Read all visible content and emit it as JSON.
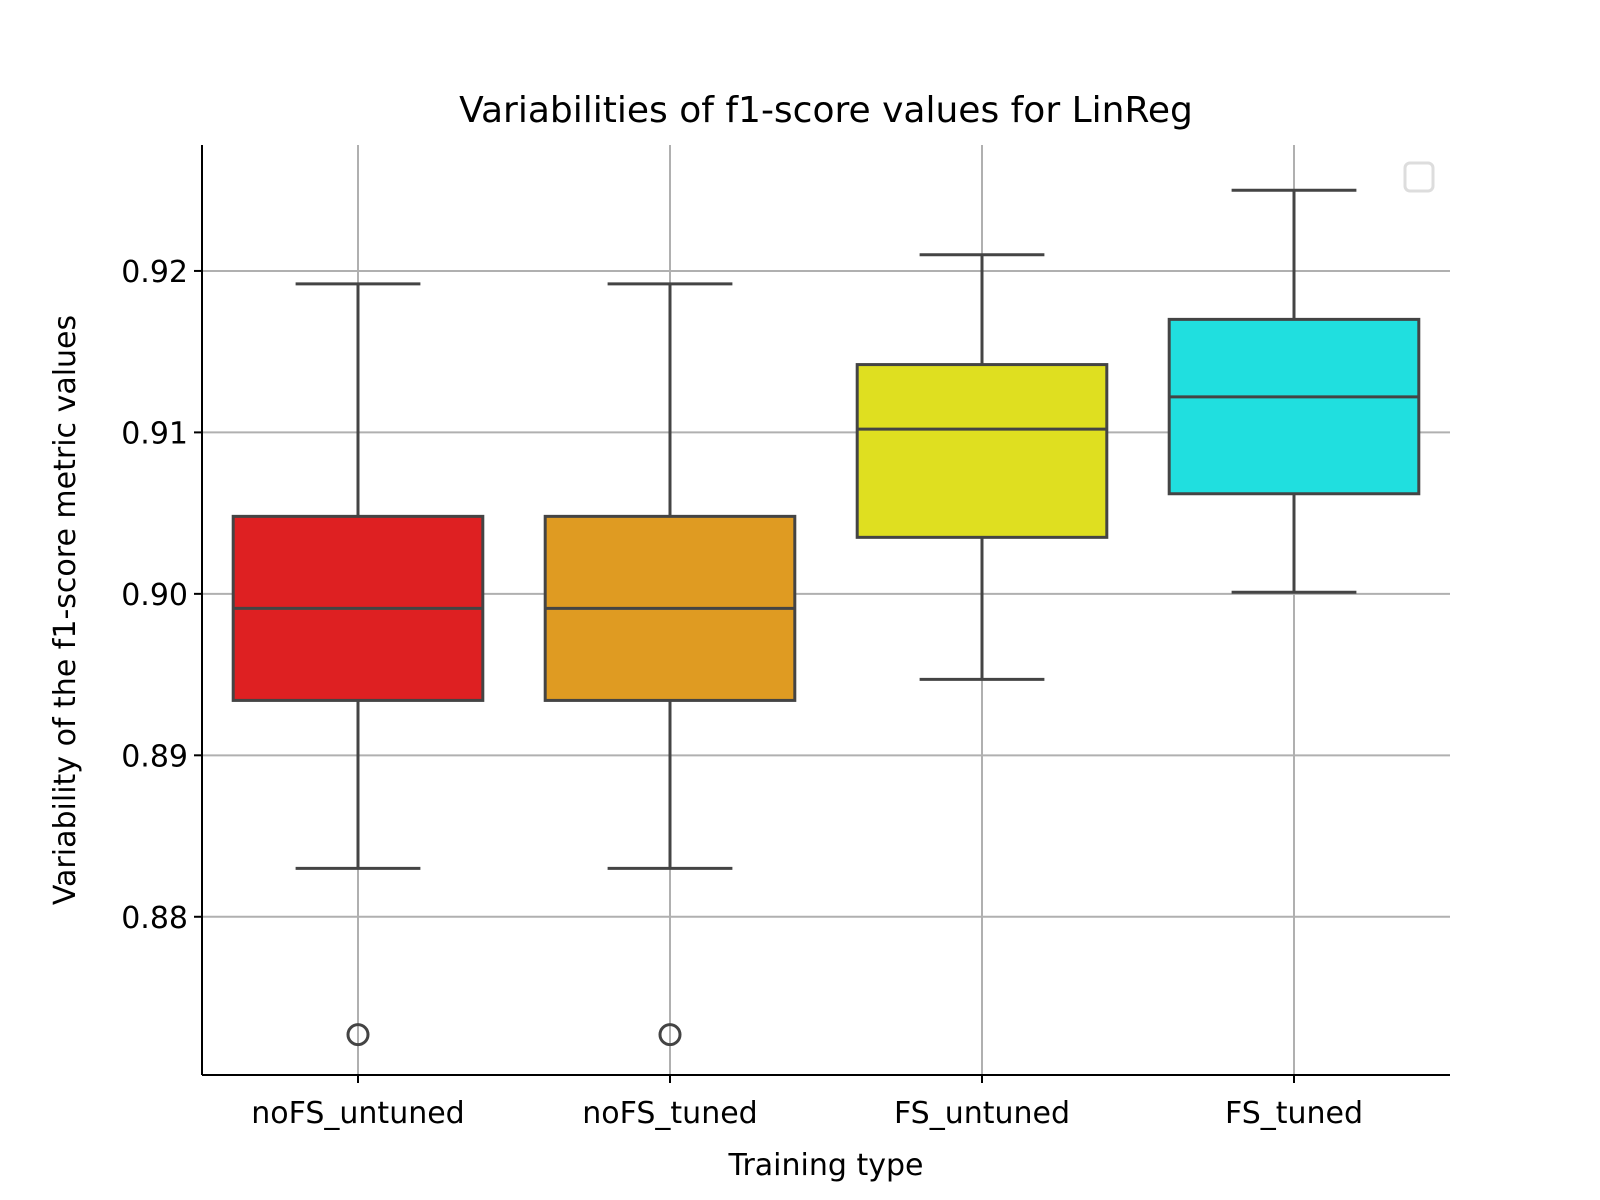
{
  "chart_data": {
    "type": "box",
    "title": "Variabilities of f1-score values for LinReg",
    "xlabel": "Training type",
    "ylabel": "Variability of the f1-score metric values",
    "ylim": [
      0.8702,
      0.9278
    ],
    "yticks": [
      0.88,
      0.89,
      0.9,
      0.91,
      0.92
    ],
    "ytick_labels": [
      "0.88",
      "0.89",
      "0.90",
      "0.91",
      "0.92"
    ],
    "grid": true,
    "legend": "top-right (empty)",
    "categories": [
      "noFS_untuned",
      "noFS_tuned",
      "FS_untuned",
      "FS_tuned"
    ],
    "boxes": [
      {
        "label": "noFS_untuned",
        "whisker_low": 0.883,
        "q1": 0.8934,
        "median": 0.8991,
        "q3": 0.9048,
        "whisker_high": 0.9192,
        "outliers": [
          0.8727
        ],
        "color": "#de2022"
      },
      {
        "label": "noFS_tuned",
        "whisker_low": 0.883,
        "q1": 0.8934,
        "median": 0.8991,
        "q3": 0.9048,
        "whisker_high": 0.9192,
        "outliers": [
          0.8727
        ],
        "color": "#df9b22"
      },
      {
        "label": "FS_untuned",
        "whisker_low": 0.8947,
        "q1": 0.9035,
        "median": 0.9102,
        "q3": 0.9142,
        "whisker_high": 0.921,
        "outliers": [],
        "color": "#dfdf20"
      },
      {
        "label": "FS_tuned",
        "whisker_low": 0.9001,
        "q1": 0.9062,
        "median": 0.9122,
        "q3": 0.917,
        "whisker_high": 0.925,
        "outliers": [],
        "color": "#20dfdf"
      }
    ]
  }
}
